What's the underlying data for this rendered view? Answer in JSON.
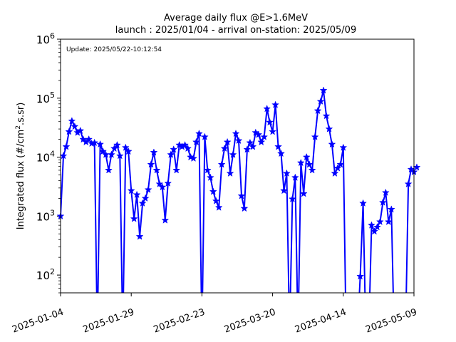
{
  "chart_data": {
    "type": "line",
    "title_line1": "Average daily flux @E>1.6MeV",
    "title_line2": "launch : 2025/01/04 - arrival on-station: 2025/05/09",
    "annotation": "Update: 2025/05/22-10:12:54",
    "ylabel_prefix": "Integrated flux (#/cm",
    "ylabel_sup": "2",
    "ylabel_suffix": ".s.sr)",
    "xlabel": "",
    "yscale": "log",
    "ylim": [
      50,
      1000000
    ],
    "xlim": [
      "2025-01-04",
      "2025-05-09"
    ],
    "x_ticks": [
      "2025-01-04",
      "2025-01-29",
      "2025-02-23",
      "2025-03-20",
      "2025-04-14",
      "2025-05-09"
    ],
    "y_ticks": [
      {
        "base": "10",
        "exp": "2",
        "value": 100
      },
      {
        "base": "10",
        "exp": "3",
        "value": 1000
      },
      {
        "base": "10",
        "exp": "4",
        "value": 10000
      },
      {
        "base": "10",
        "exp": "5",
        "value": 100000
      },
      {
        "base": "10",
        "exp": "6",
        "value": 1000000
      }
    ],
    "marker": "star",
    "line_color": "#0000ff",
    "series": [
      {
        "values": [
          1000,
          10500,
          15000,
          27000,
          41000,
          33000,
          26000,
          28000,
          20000,
          18000,
          20000,
          17000,
          17500,
          null,
          16500,
          12500,
          11000,
          6000,
          11000,
          14000,
          16000,
          10500,
          null,
          14500,
          12500,
          2700,
          900,
          2300,
          450,
          1650,
          2000,
          2800,
          7500,
          12000,
          6000,
          3500,
          3100,
          850,
          3600,
          11000,
          13500,
          6000,
          16000,
          15000,
          16000,
          14000,
          10000,
          9500,
          18000,
          25000,
          null,
          22000,
          6000,
          4500,
          2600,
          1800,
          1400,
          7500,
          14000,
          18000,
          5300,
          11000,
          25000,
          19000,
          2200,
          1350,
          13500,
          17500,
          15000,
          26000,
          24000,
          18000,
          22000,
          66000,
          39000,
          27000,
          77000,
          15000,
          11500,
          2700,
          5300,
          null,
          1950,
          4500,
          null,
          8000,
          2400,
          10000,
          7500,
          6000,
          22000,
          61000,
          88000,
          135000,
          50000,
          30000,
          16500,
          5300,
          6500,
          7500,
          14500,
          null,
          null,
          null,
          null,
          null,
          95,
          1650,
          null,
          null,
          700,
          550,
          650,
          800,
          1700,
          2500,
          800,
          1300,
          null,
          null,
          null,
          null,
          null,
          3500,
          6200,
          5600,
          6700
        ]
      }
    ]
  }
}
